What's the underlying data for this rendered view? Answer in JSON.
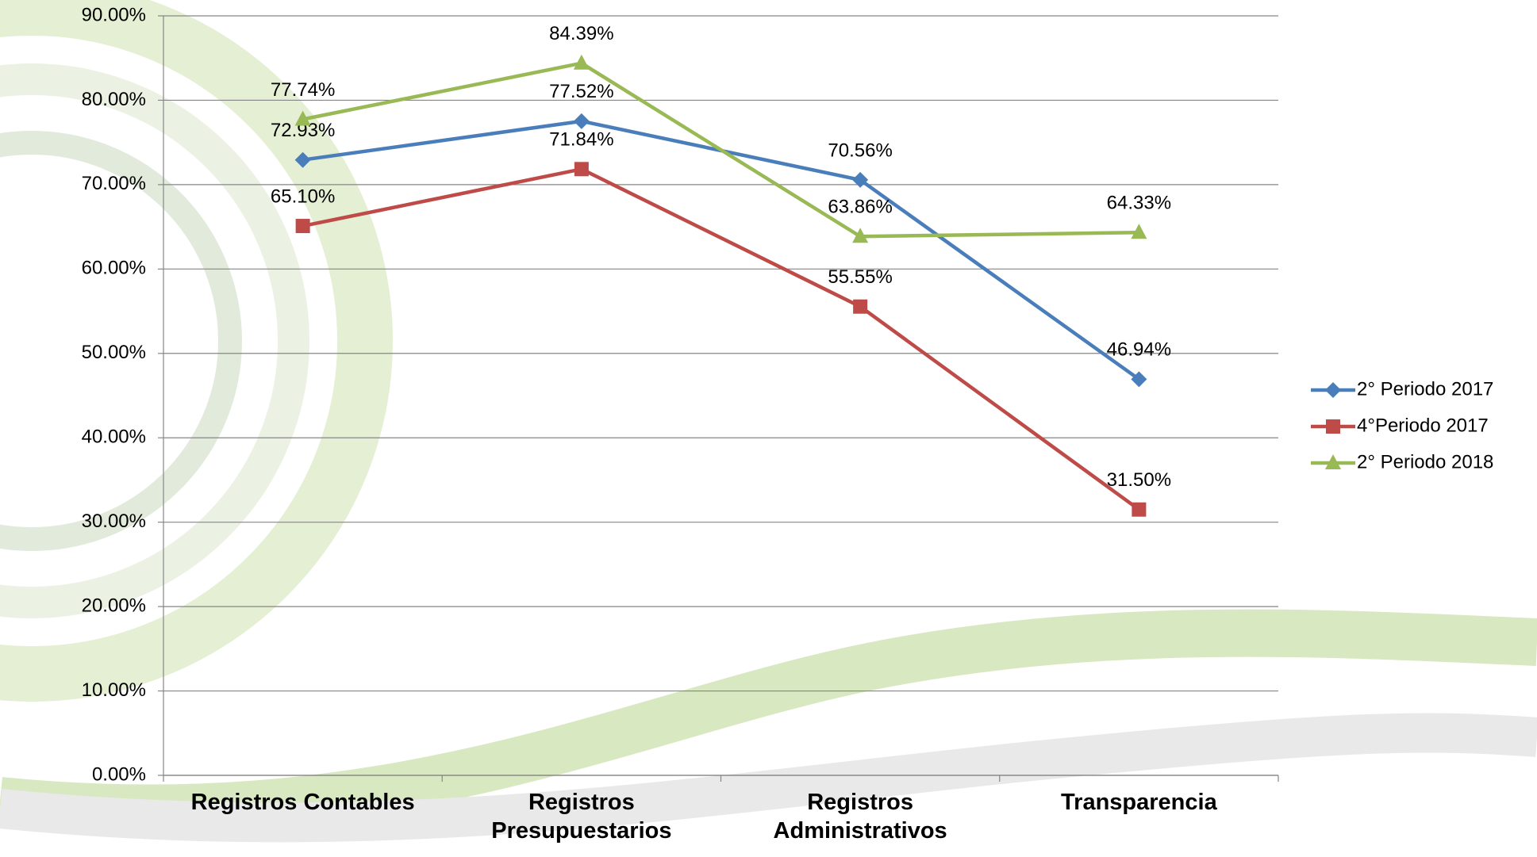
{
  "chart_data": {
    "type": "line",
    "categories": [
      "Registros Contables",
      "Registros Presupuestarios",
      "Registros Administrativos",
      "Transparencia"
    ],
    "series": [
      {
        "name": "2° Periodo 2017",
        "color": "#4a7ebb",
        "marker": "diamond",
        "values": [
          72.93,
          77.52,
          70.56,
          46.94
        ],
        "value_labels": [
          "72.93%",
          "77.52%",
          "70.56%",
          "46.94%"
        ]
      },
      {
        "name": "4°Periodo 2017",
        "color": "#be4b48",
        "marker": "square",
        "values": [
          65.1,
          71.84,
          55.55,
          31.5
        ],
        "value_labels": [
          "65.10%",
          "71.84%",
          "55.55%",
          "31.50%"
        ]
      },
      {
        "name": "2° Periodo 2018",
        "color": "#98b954",
        "marker": "triangle",
        "values": [
          77.74,
          84.39,
          63.86,
          64.33
        ],
        "value_labels": [
          "77.74%",
          "84.39%",
          "63.86%",
          "64.33%"
        ]
      }
    ],
    "ylim": [
      0,
      90
    ],
    "yticks": [
      {
        "value": 0,
        "label": "0.00%"
      },
      {
        "value": 10,
        "label": "10.00%"
      },
      {
        "value": 20,
        "label": "20.00%"
      },
      {
        "value": 30,
        "label": "30.00%"
      },
      {
        "value": 40,
        "label": "40.00%"
      },
      {
        "value": 50,
        "label": "50.00%"
      },
      {
        "value": 60,
        "label": "60.00%"
      },
      {
        "value": 70,
        "label": "70.00%"
      },
      {
        "value": 80,
        "label": "80.00%"
      },
      {
        "value": 90,
        "label": "90.00%"
      }
    ],
    "grid": true,
    "legend": "right"
  }
}
